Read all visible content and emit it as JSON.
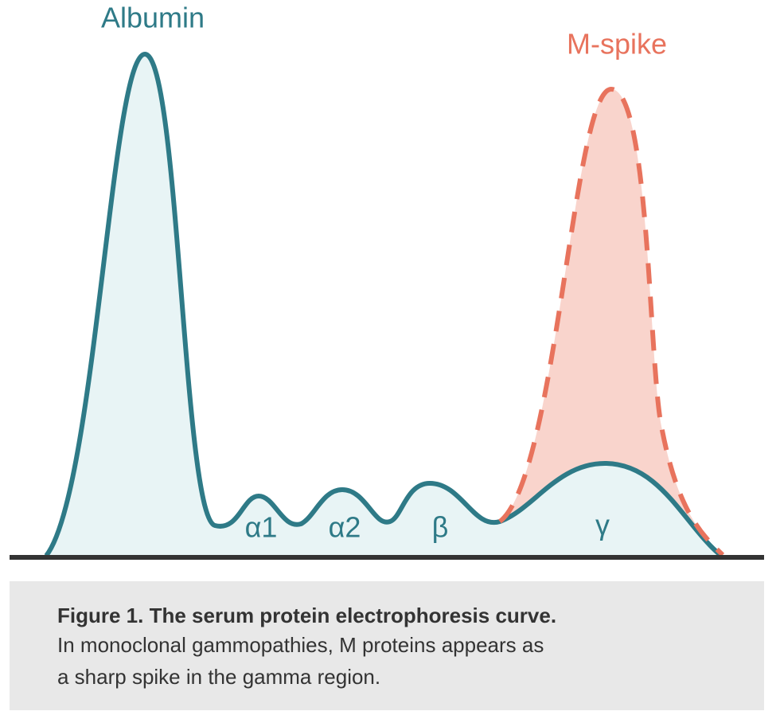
{
  "labels": {
    "albumin": "Albumin",
    "m_spike": "M-spike",
    "alpha1": "α1",
    "alpha2": "α2",
    "beta": "β",
    "gamma": "γ"
  },
  "caption": {
    "title": "Figure 1. The serum protein electrophoresis curve.",
    "lines": [
      "In monoclonal gammopathies, M proteins appears as",
      "a sharp spike in the gamma region."
    ]
  }
}
